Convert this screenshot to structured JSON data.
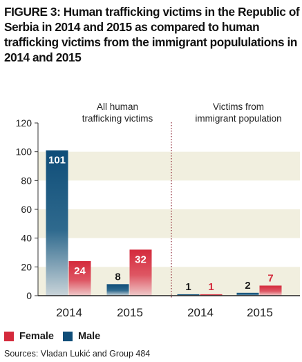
{
  "title": "FIGURE 3: Human trafficking victims in the Republic of Serbia in 2014 and 2015 as compared to human trafficking victims from the immigrant populations in 2014 and 2015",
  "title_display": "FIGURE 3: Human trafficking victims in the Republic of Serbia in 2014 and 2015 as compared to human trafficking victims from the immigrant popululations in 2014 and 2015",
  "source": "Sources: Vladan Lukić and Group 484",
  "colors": {
    "male": "#0f4d78",
    "female": "#d42a3c",
    "band": "#f1efdf",
    "divider": "#8b2331"
  },
  "chart_data": {
    "type": "bar",
    "ylim": [
      0,
      120
    ],
    "yticks": [
      0,
      20,
      40,
      60,
      80,
      100,
      120
    ],
    "grid": "alternating horizontal bands",
    "legend_position": "bottom-left",
    "series_order": [
      "Male",
      "Female"
    ],
    "groups": [
      {
        "label": "All human\ntrafficking victims",
        "categories": [
          "2014",
          "2015"
        ],
        "series": [
          {
            "name": "Male",
            "values": [
              101,
              8
            ]
          },
          {
            "name": "Female",
            "values": [
              24,
              32
            ]
          }
        ]
      },
      {
        "label": "Victims from\nimmigrant population",
        "categories": [
          "2014",
          "2015"
        ],
        "series": [
          {
            "name": "Male",
            "values": [
              1,
              2
            ]
          },
          {
            "name": "Female",
            "values": [
              1,
              7
            ]
          }
        ]
      }
    ],
    "legend": [
      {
        "name": "Female",
        "color": "#d42a3c"
      },
      {
        "name": "Male",
        "color": "#0f4d78"
      }
    ]
  }
}
